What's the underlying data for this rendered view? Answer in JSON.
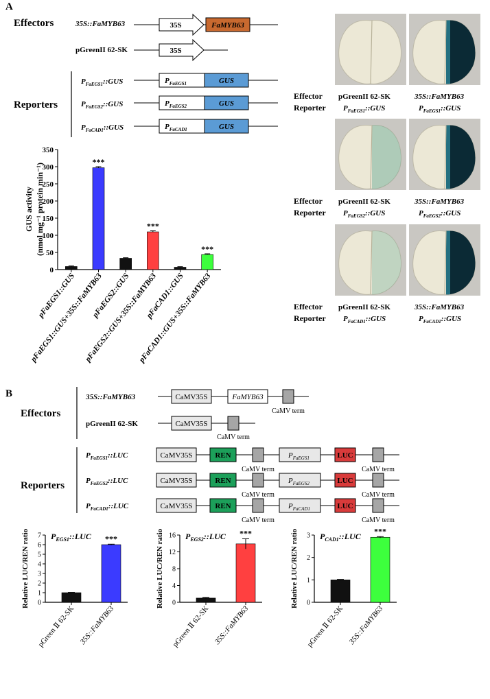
{
  "panel_a": {
    "label": "A",
    "effectors_heading": "Effectors",
    "reporters_heading": "Reporters",
    "effector_rows": [
      {
        "name": "35S::FaMYB63",
        "promoter": "35S",
        "gene": "FaMYB63"
      },
      {
        "name": "pGreenII 62-SK",
        "promoter": "35S"
      }
    ],
    "reporter_rows": [
      {
        "name_main": "P",
        "name_sub": "FaEGS1",
        "name_tail": "::GUS",
        "promoter_main": "P",
        "promoter_sub": "FaEGS1",
        "gene": "GUS"
      },
      {
        "name_main": "P",
        "name_sub": "FaEGS2",
        "name_tail": "::GUS",
        "promoter_main": "P",
        "promoter_sub": "FaEGS2",
        "gene": "GUS"
      },
      {
        "name_main": "P",
        "name_sub": "FaCAD1",
        "name_tail": "::GUS",
        "promoter_main": "P",
        "promoter_sub": "FaCAD1",
        "gene": "GUS"
      }
    ],
    "leaf_rows": [
      {
        "effector_label": "Effector",
        "reporter_label": "Reporter",
        "left": {
          "effector": "pGreenII 62-SK",
          "rep_main": "P",
          "rep_sub": "FaEGS1",
          "rep_tail": "::GUS"
        },
        "right": {
          "effector": "35S::FaMYB63",
          "rep_main": "P",
          "rep_sub": "FaEGS1",
          "rep_tail": "::GUS"
        }
      },
      {
        "effector_label": "Effector",
        "reporter_label": "Reporter",
        "left": {
          "effector": "pGreenII 62-SK",
          "rep_main": "P",
          "rep_sub": "FaEGS2",
          "rep_tail": "::GUS"
        },
        "right": {
          "effector": "35S::FaMYB63",
          "rep_main": "P",
          "rep_sub": "FaEGS2",
          "rep_tail": "::GUS"
        }
      },
      {
        "effector_label": "Effector",
        "reporter_label": "Reporter",
        "left": {
          "effector": "pGreenII 62-SK",
          "rep_main": "P",
          "rep_sub": "FaCAD1",
          "rep_tail": "::GUS"
        },
        "right": {
          "effector": "35S::FaMYB63",
          "rep_main": "P",
          "rep_sub": "FaCAD1",
          "rep_tail": "::GUS"
        }
      }
    ]
  },
  "panel_b": {
    "label": "B",
    "effectors_heading": "Effectors",
    "reporters_heading": "Reporters",
    "effector_rows": [
      {
        "name": "35S::FaMYB63",
        "promoter": "CaMV35S",
        "gene": "FaMYB63",
        "term": "CaMV term"
      },
      {
        "name": "pGreenII 62-SK",
        "promoter": "CaMV35S",
        "term": "CaMV term"
      }
    ],
    "reporter_rows": [
      {
        "name_main": "P",
        "name_sub": "FaEGS1",
        "name_tail": "::LUC",
        "promoter": "CaMV35S",
        "ren": "REN",
        "term": "CaMV term",
        "p_main": "P",
        "p_sub": "FaEGS1",
        "luc": "LUC"
      },
      {
        "name_main": "P",
        "name_sub": "FaEGS2",
        "name_tail": "::LUC",
        "promoter": "CaMV35S",
        "ren": "REN",
        "term": "CaMV term",
        "p_main": "P",
        "p_sub": "FaEGS2",
        "luc": "LUC"
      },
      {
        "name_main": "P",
        "name_sub": "FaCAD1",
        "name_tail": "::LUC",
        "promoter": "CaMV35S",
        "ren": "REN",
        "term": "CaMV term",
        "p_main": "P",
        "p_sub": "FaCAD1",
        "luc": "LUC"
      }
    ]
  },
  "colors": {
    "famyb63_box": "#c8692f",
    "gus_box": "#5b9bd5",
    "ren_box": "#1ca05a",
    "luc_box": "#d93b3b",
    "promoter_box": "#e8e8e8",
    "term_box": "#a6a6a6",
    "bar_black": "#111111",
    "bar_blue": "#3b3bff",
    "bar_red": "#ff4040",
    "bar_green": "#3dff3d"
  },
  "chart_data": [
    {
      "type": "bar",
      "ylabel_line1": "GUS activity",
      "ylabel_line2": "(nmol mg⁻¹ protein min⁻¹)",
      "ylim": [
        0,
        350
      ],
      "yticks": [
        0,
        50,
        100,
        150,
        200,
        250,
        300,
        350
      ],
      "categories": [
        "pFaEGS1::GUS",
        "pFaEGS1::GUS+35S::FaMYB63",
        "pFaEGS2::GUS",
        "pFaEGS2::GUS+35S::FaMYB63",
        "pFaCAD1::GUS",
        "pFaCAD1::GUS+35S::FaMYB63"
      ],
      "values": [
        9,
        297,
        33,
        110,
        7,
        44
      ],
      "errors": [
        1.5,
        3,
        1.5,
        3,
        1.5,
        2
      ],
      "bar_colors": [
        "#111111",
        "#3b3bff",
        "#111111",
        "#ff4040",
        "#111111",
        "#3dff3d"
      ],
      "significance": [
        "",
        "***",
        "",
        "***",
        "",
        "***"
      ]
    },
    {
      "type": "bar",
      "title_main": "P",
      "title_sub": "EGS1",
      "title_tail": "::LUC",
      "ylabel": "Relative LUC/REN ratio",
      "ylim": [
        0,
        7
      ],
      "yticks": [
        0,
        1,
        2,
        3,
        4,
        5,
        6,
        7
      ],
      "categories": [
        "pGreen Ⅱ 62-SK",
        "35S::FaMYB63"
      ],
      "values": [
        1.0,
        6.0
      ],
      "errors": [
        0.03,
        0.05
      ],
      "bar_colors": [
        "#111111",
        "#3b3bff"
      ],
      "significance": [
        "",
        "***"
      ]
    },
    {
      "type": "bar",
      "title_main": "P",
      "title_sub": "EGS2",
      "title_tail": "::LUC",
      "ylabel": "Relative LUC/REN ratio",
      "ylim": [
        0,
        16
      ],
      "yticks": [
        0,
        4,
        8,
        12,
        16
      ],
      "categories": [
        "pGreen Ⅱ 62-SK",
        "35S::FaMYB63"
      ],
      "values": [
        1.0,
        13.9
      ],
      "errors": [
        0.15,
        1.2
      ],
      "bar_colors": [
        "#111111",
        "#ff4040"
      ],
      "significance": [
        "",
        "***"
      ]
    },
    {
      "type": "bar",
      "title_main": "P",
      "title_sub": "CAD1",
      "title_tail": "::LUC",
      "ylabel": "Relative LUC/REN ratio",
      "ylim": [
        0,
        3
      ],
      "yticks": [
        0,
        1,
        2,
        3
      ],
      "categories": [
        "pGreen Ⅱ 62-SK",
        "35S::FaMYB63"
      ],
      "values": [
        1.0,
        2.9
      ],
      "errors": [
        0.02,
        0.03
      ],
      "bar_colors": [
        "#111111",
        "#3dff3d"
      ],
      "significance": [
        "",
        "***"
      ]
    }
  ]
}
